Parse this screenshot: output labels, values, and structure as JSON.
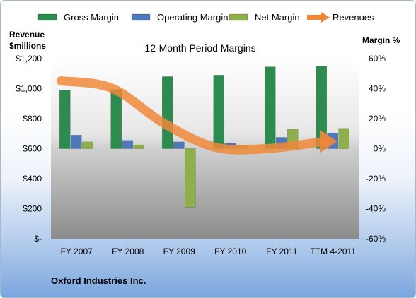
{
  "chart_data": {
    "type": "bar",
    "title": "12-Month Period Margins",
    "categories": [
      "FY 2007",
      "FY 2008",
      "FY 2009",
      "FY 2010",
      "FY 2011",
      "TTM 4-2011"
    ],
    "series": [
      {
        "name": "Gross Margin",
        "values": [
          39,
          39.5,
          48,
          49,
          54.5,
          55
        ],
        "color": "#2e8b4f",
        "kind": "bar"
      },
      {
        "name": "Operating Margin",
        "values": [
          9,
          5.5,
          4.5,
          3.5,
          7.5,
          10.5
        ],
        "color": "#4f78b8",
        "kind": "bar"
      },
      {
        "name": "Net Margin",
        "values": [
          4.5,
          2.5,
          -39,
          2,
          13,
          13.5
        ],
        "color": "#8fae4c",
        "kind": "bar"
      },
      {
        "name": "Revenues",
        "values": [
          1052,
          1002,
          770,
          610,
          600,
          648
        ],
        "color": "#f0883a",
        "kind": "line"
      }
    ],
    "left_axis": {
      "label_line1": "Revenue",
      "label_line2": "$millions",
      "range": [
        0,
        1200
      ],
      "ticks": [
        {
          "value": 1200,
          "label": "$1,200"
        },
        {
          "value": 1000,
          "label": "$1,000"
        },
        {
          "value": 800,
          "label": "$800"
        },
        {
          "value": 600,
          "label": "$600"
        },
        {
          "value": 400,
          "label": "$400"
        },
        {
          "value": 200,
          "label": "$200"
        },
        {
          "value": 0,
          "label": "$-"
        }
      ]
    },
    "right_axis": {
      "label": "Margin %",
      "range": [
        -60,
        60
      ],
      "ticks": [
        {
          "value": 60,
          "label": "60%"
        },
        {
          "value": 40,
          "label": "40%"
        },
        {
          "value": 20,
          "label": "20%"
        },
        {
          "value": 0,
          "label": "0%"
        },
        {
          "value": -20,
          "label": "-20%"
        },
        {
          "value": -40,
          "label": "-40%"
        },
        {
          "value": -60,
          "label": "-60%"
        }
      ]
    },
    "legend_position": "top",
    "grid": false,
    "footer": "Oxford Industries Inc."
  }
}
